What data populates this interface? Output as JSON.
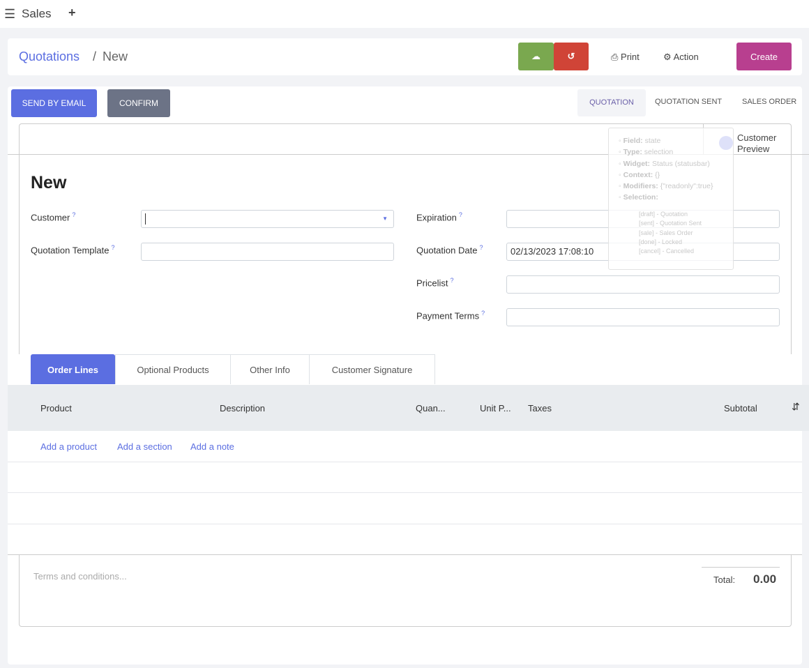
{
  "app": {
    "title": "Sales"
  },
  "breadcrumb": {
    "parent": "Quotations",
    "separator": "/",
    "current": "New"
  },
  "toolbar": {
    "save_icon": "cloud-upload-icon",
    "discard_icon": "undo-icon",
    "print": "Print",
    "action": "Action",
    "create": "Create"
  },
  "statusbar": {
    "send_email": "SEND BY EMAIL",
    "confirm": "CONFIRM",
    "stages": [
      "QUOTATION",
      "QUOTATION SENT",
      "SALES ORDER"
    ],
    "active": "QUOTATION"
  },
  "smart_button": {
    "line1": "Customer",
    "line2": "Preview"
  },
  "form": {
    "title": "New",
    "customer": {
      "label": "Customer",
      "value": ""
    },
    "template": {
      "label": "Quotation Template",
      "value": ""
    },
    "expiration": {
      "label": "Expiration",
      "value": ""
    },
    "quotation_date": {
      "label": "Quotation Date",
      "value": "02/13/2023 17:08:10"
    },
    "pricelist": {
      "label": "Pricelist",
      "value": ""
    },
    "payment_terms": {
      "label": "Payment Terms",
      "value": ""
    },
    "help": "?"
  },
  "tabs": [
    "Order Lines",
    "Optional Products",
    "Other Info",
    "Customer Signature"
  ],
  "table": {
    "headers": [
      "Product",
      "Description",
      "Quan...",
      "Unit P...",
      "Taxes",
      "Subtotal"
    ],
    "add_product": "Add a product",
    "add_section": "Add a section",
    "add_note": "Add a note"
  },
  "footer": {
    "terms_placeholder": "Terms and conditions...",
    "total_label": "Total:",
    "total_value": "0.00"
  },
  "tooltip": {
    "field": {
      "k": "Field:",
      "v": "state"
    },
    "type": {
      "k": "Type:",
      "v": "selection"
    },
    "widget": {
      "k": "Widget:",
      "v": "Status (statusbar)"
    },
    "context": {
      "k": "Context:",
      "v": "{}"
    },
    "modifiers": {
      "k": "Modifiers:",
      "v": "{\"readonly\":true}"
    },
    "selection": {
      "k": "Selection:"
    },
    "options": [
      "[draft] - Quotation",
      "[sent] - Quotation Sent",
      "[sale] - Sales Order",
      "[done] - Locked",
      "[cancel] - Cancelled"
    ]
  },
  "colors": {
    "primary": "#5b6ee1",
    "save": "#7aa84f",
    "discard": "#d04437",
    "create": "#b83f8f",
    "confirm": "#6c7386"
  }
}
